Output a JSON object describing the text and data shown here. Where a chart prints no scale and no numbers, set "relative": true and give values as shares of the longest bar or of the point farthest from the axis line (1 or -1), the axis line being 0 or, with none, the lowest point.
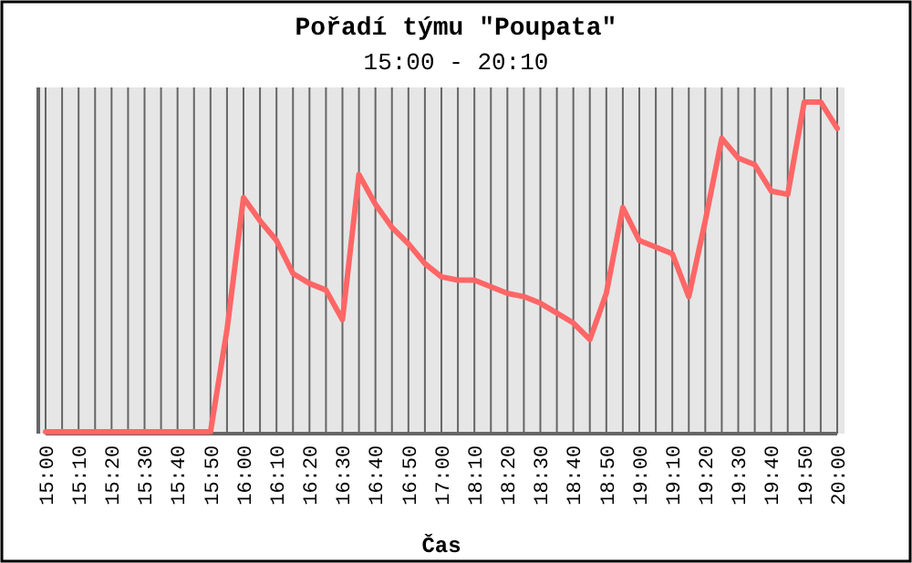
{
  "chart_data": {
    "type": "line",
    "title": "Pořadí týmu \"Poupata\"",
    "subtitle": "15:00 - 20:10",
    "xlabel": "Čas",
    "relative": true,
    "grid": "x",
    "marker": "none",
    "line_style": "solid",
    "categories": [
      "15:00",
      null,
      "15:10",
      null,
      "15:20",
      null,
      "15:30",
      null,
      "15:40",
      null,
      "15:50",
      null,
      "16:00",
      null,
      "16:10",
      null,
      "16:20",
      null,
      "16:30",
      null,
      "16:40",
      null,
      "16:50",
      null,
      "17:00",
      null,
      "18:10",
      null,
      "18:20",
      null,
      "18:30",
      null,
      "18:40",
      null,
      "18:50",
      null,
      "19:00",
      null,
      "19:10",
      null,
      "19:20",
      null,
      "19:30",
      null,
      "19:40",
      null,
      "19:50",
      null,
      "20:00"
    ],
    "series": [
      {
        "color": "#ff6666",
        "values": [
          0,
          0,
          0,
          0,
          0,
          0,
          0,
          0,
          0,
          0,
          0,
          0.31,
          0.71,
          0.64,
          0.58,
          0.48,
          0.45,
          0.43,
          0.34,
          0.78,
          0.69,
          0.62,
          0.57,
          0.51,
          0.47,
          0.46,
          0.46,
          0.44,
          0.42,
          0.41,
          0.39,
          0.36,
          0.33,
          0.28,
          0.42,
          0.68,
          0.58,
          0.56,
          0.54,
          0.41,
          0.64,
          0.89,
          0.83,
          0.81,
          0.73,
          0.72,
          1,
          1,
          0.92
        ]
      }
    ]
  }
}
